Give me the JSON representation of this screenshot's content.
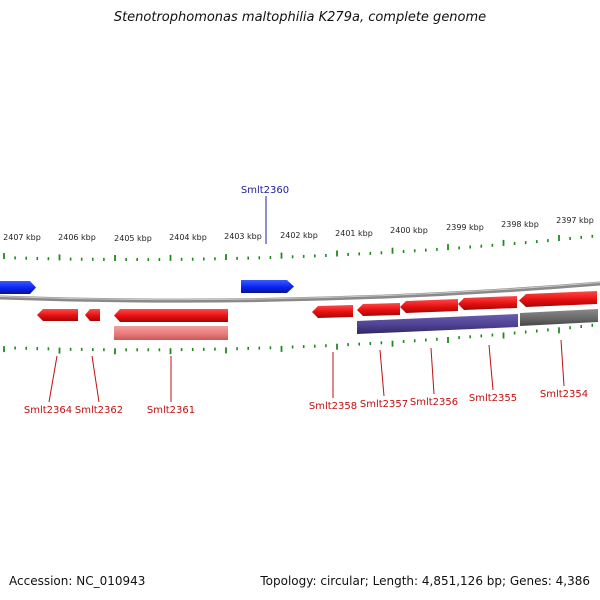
{
  "title": "Stenotrophomonas maltophilia K279a, complete genome",
  "footer": {
    "accession": "Accession: NC_010943",
    "info": "Topology: circular; Length: 4,851,126 bp; Genes: 4,386"
  },
  "colors": {
    "forward_gene": "#0a23f2",
    "reverse_gene": "#ee1111",
    "pseudo_gene": "#e87878",
    "purple_feature": "#4b3f8f",
    "gray_feature": "#6a6a6a",
    "backbone": "#8a8a8a",
    "tick": "#1f8a1f",
    "forward_label": "#2020a0",
    "reverse_label": "#c01010"
  },
  "scale_labels": [
    "2407 kbp",
    "2406 kbp",
    "2405 kbp",
    "2404 kbp",
    "2403 kbp",
    "2402 kbp",
    "2401 kbp",
    "2400 kbp",
    "2399 kbp",
    "2398 kbp",
    "2397 kbp"
  ],
  "forward_labels": [
    "Smlt2360"
  ],
  "reverse_labels": [
    "Smlt2364",
    "Smlt2362",
    "Smlt2361",
    "Smlt2358",
    "Smlt2357",
    "Smlt2356",
    "Smlt2355",
    "Smlt2354"
  ]
}
